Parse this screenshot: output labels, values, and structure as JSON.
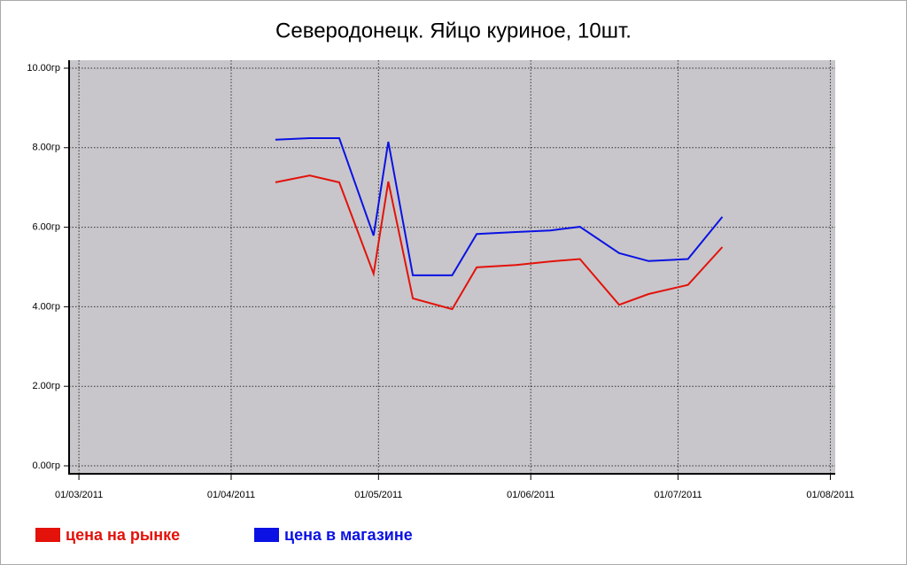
{
  "chart_data": {
    "type": "line",
    "title": "Северодонецк. Яйцо куриное, 10шт.",
    "x": [
      "2011-04-10",
      "2011-04-17",
      "2011-04-23",
      "2011-04-30",
      "2011-05-03",
      "2011-05-08",
      "2011-05-16",
      "2011-05-21",
      "2011-05-29",
      "2011-06-05",
      "2011-06-11",
      "2011-06-19",
      "2011-06-25",
      "2011-07-03",
      "2011-07-10"
    ],
    "series": [
      {
        "name": "цена на рынке",
        "color": "#e3120b",
        "values": [
          7.13,
          7.3,
          7.13,
          4.83,
          7.15,
          4.21,
          3.94,
          4.99,
          5.05,
          5.14,
          5.2,
          4.05,
          4.32,
          4.55,
          5.5
        ]
      },
      {
        "name": "цена в магазине",
        "color": "#0b12e3",
        "values": [
          8.2,
          8.24,
          8.24,
          5.79,
          8.15,
          4.79,
          4.79,
          5.83,
          5.88,
          5.92,
          6.01,
          5.35,
          5.15,
          5.2,
          6.26
        ]
      }
    ],
    "xlim": [
      "2011-02-27",
      "2011-08-02"
    ],
    "xticks": [
      {
        "value": "2011-03-01",
        "label": "01/03/2011"
      },
      {
        "value": "2011-04-01",
        "label": "01/04/2011"
      },
      {
        "value": "2011-05-01",
        "label": "01/05/2011"
      },
      {
        "value": "2011-06-01",
        "label": "01/06/2011"
      },
      {
        "value": "2011-07-01",
        "label": "01/07/2011"
      },
      {
        "value": "2011-08-01",
        "label": "01/08/2011"
      }
    ],
    "ylim": [
      -0.2,
      10.2
    ],
    "yticks": [
      {
        "value": 0,
        "label": "0.00гр"
      },
      {
        "value": 2,
        "label": "2.00гр"
      },
      {
        "value": 4,
        "label": "4.00гр"
      },
      {
        "value": 6,
        "label": "6.00гр"
      },
      {
        "value": 8,
        "label": "8.00гр"
      },
      {
        "value": 10,
        "label": "10.00гр"
      }
    ],
    "grid": true,
    "legend": "bottom-left"
  }
}
